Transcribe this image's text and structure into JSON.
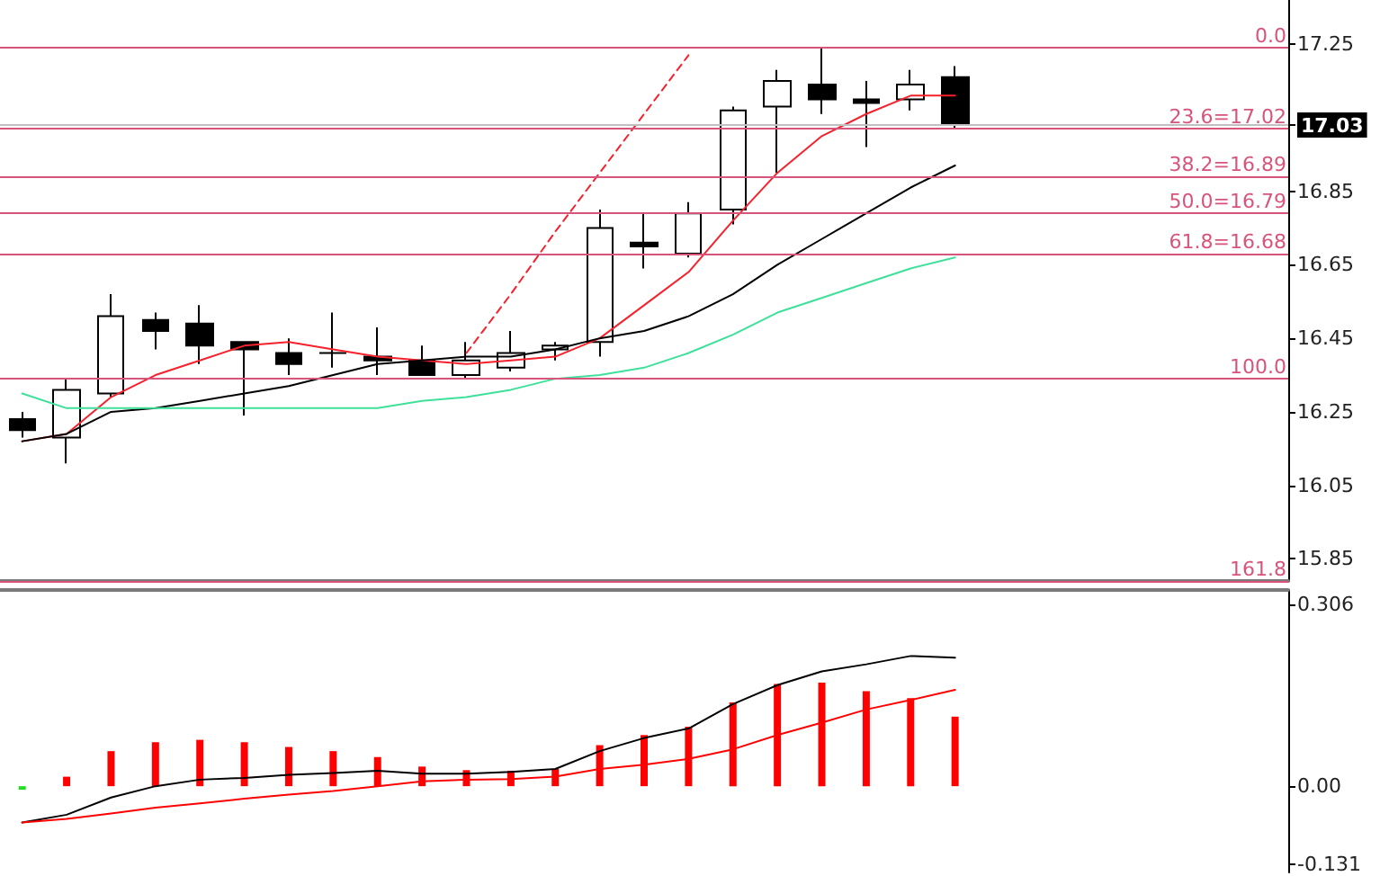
{
  "chart_data": [
    {
      "type": "candlestick",
      "categories": [
        null,
        null,
        null,
        null,
        null,
        null,
        null,
        null,
        null,
        null,
        null,
        null,
        null,
        null,
        null,
        null,
        null,
        null,
        null,
        null,
        null,
        null
      ],
      "ohlc": [
        [
          16.23,
          16.25,
          16.18,
          16.2
        ],
        [
          16.18,
          16.34,
          16.11,
          16.31
        ],
        [
          16.3,
          16.57,
          16.29,
          16.51
        ],
        [
          16.5,
          16.52,
          16.42,
          16.47
        ],
        [
          16.49,
          16.54,
          16.38,
          16.43
        ],
        [
          16.44,
          16.44,
          16.24,
          16.42
        ],
        [
          16.41,
          16.45,
          16.35,
          16.38
        ],
        [
          16.41,
          16.52,
          16.37,
          16.41
        ],
        [
          16.4,
          16.48,
          16.35,
          16.39
        ],
        [
          16.39,
          16.43,
          16.35,
          16.35
        ],
        [
          16.35,
          16.44,
          16.34,
          16.39
        ],
        [
          16.37,
          16.47,
          16.36,
          16.41
        ],
        [
          16.42,
          16.44,
          16.39,
          16.43
        ],
        [
          16.44,
          16.8,
          16.4,
          16.75
        ],
        [
          16.71,
          16.79,
          16.64,
          16.7
        ],
        [
          16.68,
          16.82,
          16.67,
          16.79
        ],
        [
          16.8,
          17.08,
          16.76,
          17.07
        ],
        [
          17.08,
          17.18,
          16.9,
          17.15
        ],
        [
          17.14,
          17.24,
          17.06,
          17.1
        ],
        [
          17.1,
          17.15,
          16.97,
          17.09
        ],
        [
          17.1,
          17.18,
          17.07,
          17.14
        ],
        [
          17.16,
          17.19,
          17.02,
          17.03
        ]
      ],
      "colors": [
        "#000000",
        "#ffffff",
        "#ffffff",
        "#000000",
        "#000000",
        "#000000",
        "#000000",
        "#000000",
        "#000000",
        "#000000",
        "#ffffff",
        "#ffffff",
        "#ffffff",
        "#ffffff",
        "#000000",
        "#ffffff",
        "#ffffff",
        "#ffffff",
        "#000000",
        "#000000",
        "#ffffff",
        "#000000"
      ],
      "series": [
        {
          "type": "line",
          "color": "#f5222d",
          "values": [
            16.17,
            16.19,
            16.29,
            16.35,
            16.39,
            16.43,
            16.44,
            16.42,
            16.4,
            16.39,
            16.38,
            16.39,
            16.4,
            16.45,
            16.54,
            16.63,
            16.77,
            16.9,
            17.0,
            17.06,
            17.11,
            17.11
          ]
        },
        {
          "type": "line",
          "color": "#000000",
          "values": [
            16.17,
            16.19,
            16.25,
            16.26,
            16.28,
            16.3,
            16.32,
            16.35,
            16.38,
            16.39,
            16.4,
            16.4,
            16.42,
            16.45,
            16.47,
            16.51,
            16.57,
            16.65,
            16.72,
            16.79,
            16.86,
            16.92
          ]
        },
        {
          "type": "line",
          "color": "#3ee09a",
          "values": [
            16.3,
            16.26,
            16.26,
            16.26,
            16.26,
            16.26,
            16.26,
            16.26,
            16.26,
            16.28,
            16.29,
            16.31,
            16.34,
            16.35,
            16.37,
            16.41,
            16.46,
            16.52,
            16.56,
            16.6,
            16.64,
            16.67
          ]
        },
        {
          "type": "line",
          "color": "#f5222d",
          "line_style": "dashed",
          "values": [
            null,
            null,
            null,
            null,
            null,
            null,
            null,
            null,
            null,
            null,
            16.41,
            16.57,
            16.74,
            16.9,
            17.06,
            17.22,
            null,
            null,
            null,
            null,
            null,
            null
          ]
        }
      ],
      "ylim": [
        15.79,
        17.37
      ],
      "yticks": [
        17.25,
        {
          "value": 17.03,
          "label": "17.03"
        },
        16.85,
        16.65,
        16.45,
        16.25,
        16.05,
        15.85
      ],
      "ref_lines": [
        {
          "axis": "y",
          "value": 17.24,
          "color": "#d9547a"
        },
        {
          "axis": "y",
          "value": 17.02,
          "label": "23.6=17.02",
          "color": "#d9547a"
        },
        {
          "axis": "y",
          "value": 16.89,
          "label": "38.2=16.89",
          "color": "#d9547a"
        },
        {
          "axis": "y",
          "value": 16.79,
          "label": "50.0=16.79",
          "color": "#d9547a"
        },
        {
          "axis": "y",
          "value": 16.68,
          "label": "61.8=16.68",
          "color": "#d9547a"
        },
        {
          "axis": "y",
          "value": 16.34,
          "color": "#d9547a"
        },
        {
          "axis": "y",
          "value": 15.79,
          "color": "#d9547a"
        },
        {
          "axis": "y",
          "value": 17.03,
          "color": "#c0c0c0"
        }
      ],
      "annotations": [
        {
          "text": "0.0",
          "y": 17.24
        },
        {
          "text": "100.0",
          "y": 16.34
        },
        {
          "text": "161.8",
          "y": 15.79
        }
      ],
      "tick_labels": "y",
      "marker": "none",
      "line_style": "solid"
    },
    {
      "type": "bar",
      "categories": [
        null,
        null,
        null,
        null,
        null,
        null,
        null,
        null,
        null,
        null,
        null,
        null,
        null,
        null,
        null,
        null,
        null,
        null,
        null,
        null,
        null,
        null
      ],
      "values": [
        -0.006,
        0.016,
        0.059,
        0.074,
        0.078,
        0.074,
        0.066,
        0.059,
        0.049,
        0.033,
        0.027,
        0.026,
        0.029,
        0.069,
        0.086,
        0.1,
        0.141,
        0.172,
        0.174,
        0.16,
        0.148,
        0.117
      ],
      "colors": [
        "#22dd22",
        "#ff0000",
        "#ff0000",
        "#ff0000",
        "#ff0000",
        "#ff0000",
        "#ff0000",
        "#ff0000",
        "#ff0000",
        "#ff0000",
        "#ff0000",
        "#ff0000",
        "#ff0000",
        "#ff0000",
        "#ff0000",
        "#ff0000",
        "#ff0000",
        "#ff0000",
        "#ff0000",
        "#ff0000",
        "#ff0000",
        "#ff0000"
      ],
      "series": [
        {
          "type": "line",
          "color": "#000000",
          "values": [
            -0.061,
            -0.048,
            -0.019,
            0.0,
            0.011,
            0.014,
            0.019,
            0.022,
            0.026,
            0.021,
            0.021,
            0.024,
            0.029,
            0.059,
            0.081,
            0.097,
            0.138,
            0.17,
            0.193,
            0.205,
            0.219,
            0.216
          ]
        },
        {
          "type": "line",
          "color": "#ff0000",
          "values": [
            -0.061,
            -0.055,
            -0.046,
            -0.036,
            -0.029,
            -0.021,
            -0.014,
            -0.008,
            0.0,
            0.008,
            0.011,
            0.012,
            0.016,
            0.029,
            0.036,
            0.046,
            0.062,
            0.086,
            0.107,
            0.129,
            0.145,
            0.162
          ]
        }
      ],
      "ylim": [
        -0.145,
        0.33
      ],
      "yticks": [
        0.306,
        {
          "value": 0,
          "label": "0.00"
        },
        -0.131
      ],
      "tick_labels": "y",
      "marker": "none",
      "line_style": "solid"
    }
  ]
}
